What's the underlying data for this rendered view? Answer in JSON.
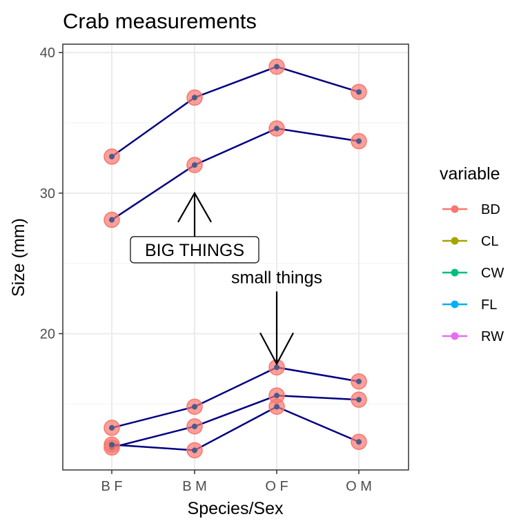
{
  "chart_data": {
    "type": "line",
    "title": "Crab measurements",
    "xlabel": "Species/Sex",
    "ylabel": "Size (mm)",
    "categories": [
      "B F",
      "B M",
      "O F",
      "O M"
    ],
    "ylim": [
      10.3,
      40.6
    ],
    "yticks": [
      20,
      30,
      40
    ],
    "grid": true,
    "legend": {
      "title": "variable",
      "placement": "right",
      "entries": [
        {
          "label": "BD",
          "color": "#F8766D"
        },
        {
          "label": "CL",
          "color": "#A3A500"
        },
        {
          "label": "CW",
          "color": "#00BF7D"
        },
        {
          "label": "FL",
          "color": "#00B0F6"
        },
        {
          "label": "RW",
          "color": "#E76BF3"
        }
      ]
    },
    "line_color": "#000080",
    "marker_color": "#F8766D",
    "series": [
      {
        "values": [
          32.6,
          36.8,
          39.0,
          37.2
        ]
      },
      {
        "values": [
          28.1,
          32.0,
          34.6,
          33.7
        ]
      },
      {
        "values": [
          13.3,
          14.8,
          17.6,
          16.6
        ]
      },
      {
        "values": [
          11.9,
          13.4,
          15.6,
          15.3
        ]
      },
      {
        "values": [
          12.1,
          11.7,
          14.8,
          12.3
        ]
      }
    ],
    "annotations": [
      {
        "text": "BIG THINGS",
        "boxed": true,
        "points_to": {
          "category": "B M",
          "y": 30.0
        }
      },
      {
        "text": "small things",
        "boxed": false,
        "points_to": {
          "category": "O F",
          "y": 17.6
        }
      }
    ]
  }
}
